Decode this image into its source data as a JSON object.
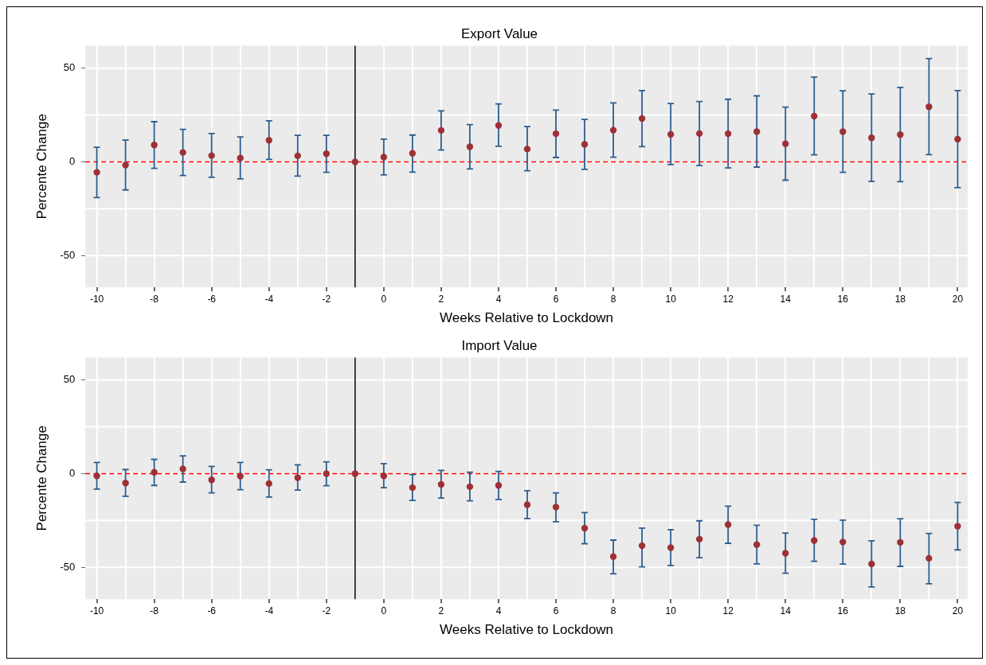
{
  "chart_data": [
    {
      "type": "scatter",
      "title": "Export Value",
      "xlabel": "Weeks Relative to Lockdown",
      "ylabel": "Percente Change",
      "x": [
        -10,
        -9,
        -8,
        -7,
        -6,
        -5,
        -4,
        -3,
        -2,
        -1,
        0,
        1,
        2,
        3,
        4,
        5,
        6,
        7,
        8,
        9,
        10,
        11,
        12,
        13,
        14,
        15,
        16,
        17,
        18,
        19,
        20
      ],
      "series": [
        {
          "color": "#9e3036",
          "values": [
            -5.6,
            -1.7,
            9.0,
            5.0,
            3.3,
            2.0,
            11.5,
            3.2,
            4.3,
            0,
            2.5,
            4.5,
            16.8,
            8.0,
            19.4,
            6.8,
            15.0,
            9.3,
            16.9,
            23.1,
            14.6,
            15.1,
            15.0,
            16.1,
            9.6,
            24.4,
            16.1,
            12.8,
            14.5,
            29.4,
            12.1
          ],
          "errors": [
            [
              -19.1,
              7.8
            ],
            [
              -15.0,
              11.6
            ],
            [
              -3.5,
              21.4
            ],
            [
              -7.3,
              17.3
            ],
            [
              -8.3,
              15.1
            ],
            [
              -9.1,
              13.3
            ],
            [
              1.3,
              21.9
            ],
            [
              -7.6,
              14.1
            ],
            [
              -5.6,
              14.1
            ],
            null,
            [
              -7.0,
              12.1
            ],
            [
              -5.5,
              14.3
            ],
            [
              6.3,
              27.2
            ],
            [
              -3.8,
              19.9
            ],
            [
              8.3,
              30.9
            ],
            [
              -4.8,
              18.8
            ],
            [
              2.3,
              27.6
            ],
            [
              -4.0,
              22.6
            ],
            [
              2.5,
              31.4
            ],
            [
              8.1,
              38.0
            ],
            [
              -1.5,
              31.1
            ],
            [
              -2.0,
              32.2
            ],
            [
              -3.3,
              33.4
            ],
            [
              -2.8,
              35.2
            ],
            [
              -9.8,
              29.2
            ],
            [
              3.7,
              45.2
            ],
            [
              -5.6,
              37.9
            ],
            [
              -10.5,
              36.2
            ],
            [
              -10.6,
              39.7
            ],
            [
              3.8,
              55.1
            ],
            [
              -13.8,
              38.0
            ]
          ]
        }
      ],
      "xlim": [
        -10.4,
        20.35
      ],
      "ylim": [
        -67,
        62
      ],
      "xticks": [
        -10,
        {
          "value": -9,
          "label": null
        },
        -8,
        {
          "value": -7,
          "label": null
        },
        -6,
        {
          "value": -5,
          "label": null
        },
        -4,
        {
          "value": -3,
          "label": null
        },
        -2,
        {
          "value": -1,
          "label": null
        },
        0,
        {
          "value": 1,
          "label": null
        },
        2,
        {
          "value": 3,
          "label": null
        },
        4,
        {
          "value": 5,
          "label": null
        },
        6,
        {
          "value": 7,
          "label": null
        },
        8,
        {
          "value": 9,
          "label": null
        },
        10,
        {
          "value": 11,
          "label": null
        },
        12,
        {
          "value": 13,
          "label": null
        },
        14,
        {
          "value": 15,
          "label": null
        },
        16,
        {
          "value": 17,
          "label": null
        },
        18,
        {
          "value": 19,
          "label": null
        },
        20
      ],
      "yticks": [
        -50,
        0,
        50
      ],
      "ref_lines": [
        {
          "axis": "y",
          "value": 0,
          "color": "#ff0000",
          "line_style": "dashed"
        },
        {
          "axis": "x",
          "value": -1,
          "color": "#000000",
          "line_style": "solid"
        }
      ],
      "grid": true,
      "legend": false,
      "marker": "circle"
    },
    {
      "type": "scatter",
      "title": "Import Value",
      "xlabel": "Weeks Relative to Lockdown",
      "ylabel": "Percente Change",
      "x": [
        -10,
        -9,
        -8,
        -7,
        -6,
        -5,
        -4,
        -3,
        -2,
        -1,
        0,
        1,
        2,
        3,
        4,
        5,
        6,
        7,
        8,
        9,
        10,
        11,
        12,
        13,
        14,
        15,
        16,
        17,
        18,
        19,
        20
      ],
      "series": [
        {
          "color": "#9e3036",
          "values": [
            -1.2,
            -5.0,
            0.7,
            2.5,
            -3.3,
            -1.3,
            -5.3,
            -2.2,
            0,
            0,
            -1.2,
            -7.5,
            -5.8,
            -7.0,
            -6.3,
            -16.6,
            -17.9,
            -29.1,
            -44.3,
            -38.5,
            -39.5,
            -35.0,
            -27.2,
            -37.9,
            -42.5,
            -35.7,
            -36.5,
            -48.2,
            -36.7,
            -45.2,
            -28.1
          ],
          "errors": [
            [
              -8.3,
              6.0
            ],
            [
              -12.1,
              2.2
            ],
            [
              -6.3,
              7.6
            ],
            [
              -4.5,
              9.5
            ],
            [
              -10.3,
              3.8
            ],
            [
              -8.6,
              6.0
            ],
            [
              -12.5,
              2.0
            ],
            [
              -8.8,
              4.7
            ],
            [
              -6.5,
              6.3
            ],
            null,
            [
              -7.5,
              5.3
            ],
            [
              -14.3,
              -0.5
            ],
            [
              -13.0,
              1.7
            ],
            [
              -14.5,
              0.8
            ],
            [
              -13.8,
              1.2
            ],
            [
              -24.0,
              -9.1
            ],
            [
              -25.7,
              -10.3
            ],
            [
              -37.4,
              -20.8
            ],
            [
              -53.5,
              -35.5
            ],
            [
              -49.8,
              -29.1
            ],
            [
              -49.0,
              -29.9
            ],
            [
              -44.9,
              -25.2
            ],
            [
              -37.2,
              -17.4
            ],
            [
              -48.2,
              -27.6
            ],
            [
              -53.2,
              -31.7
            ],
            [
              -46.8,
              -24.4
            ],
            [
              -48.3,
              -24.8
            ],
            [
              -60.5,
              -35.9
            ],
            [
              -49.5,
              -24.1
            ],
            [
              -58.8,
              -31.9
            ],
            [
              -40.7,
              -15.4
            ]
          ]
        }
      ],
      "xlim": [
        -10.4,
        20.35
      ],
      "ylim": [
        -67,
        62
      ],
      "xticks": [
        -10,
        {
          "value": -9,
          "label": null
        },
        -8,
        {
          "value": -7,
          "label": null
        },
        -6,
        {
          "value": -5,
          "label": null
        },
        -4,
        {
          "value": -3,
          "label": null
        },
        -2,
        {
          "value": -1,
          "label": null
        },
        0,
        {
          "value": 1,
          "label": null
        },
        2,
        {
          "value": 3,
          "label": null
        },
        4,
        {
          "value": 5,
          "label": null
        },
        6,
        {
          "value": 7,
          "label": null
        },
        8,
        {
          "value": 9,
          "label": null
        },
        10,
        {
          "value": 11,
          "label": null
        },
        12,
        {
          "value": 13,
          "label": null
        },
        14,
        {
          "value": 15,
          "label": null
        },
        16,
        {
          "value": 17,
          "label": null
        },
        18,
        {
          "value": 19,
          "label": null
        },
        20
      ],
      "yticks": [
        -50,
        0,
        50
      ],
      "ref_lines": [
        {
          "axis": "y",
          "value": 0,
          "color": "#ff0000",
          "line_style": "dashed"
        },
        {
          "axis": "x",
          "value": -1,
          "color": "#000000",
          "line_style": "solid"
        }
      ],
      "grid": true,
      "legend": false,
      "marker": "circle"
    }
  ]
}
